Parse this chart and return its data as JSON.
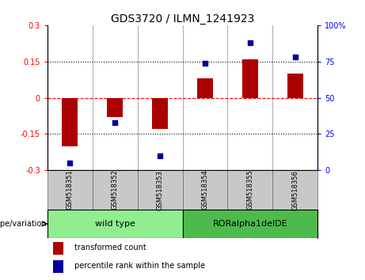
{
  "title": "GDS3720 / ILMN_1241923",
  "samples": [
    "GSM518351",
    "GSM518352",
    "GSM518353",
    "GSM518354",
    "GSM518355",
    "GSM518356"
  ],
  "red_values": [
    -0.2,
    -0.08,
    -0.13,
    0.08,
    0.16,
    0.1
  ],
  "blue_values": [
    5,
    33,
    10,
    74,
    88,
    78
  ],
  "ylim_left": [
    -0.3,
    0.3
  ],
  "ylim_right": [
    0,
    100
  ],
  "yticks_left": [
    -0.3,
    -0.15,
    0,
    0.15,
    0.3
  ],
  "ytick_labels_left": [
    "-0.3",
    "-0.15",
    "0",
    "0.15",
    "0.3"
  ],
  "yticks_right": [
    0,
    25,
    50,
    75,
    100
  ],
  "ytick_labels_right": [
    "0",
    "25",
    "50",
    "75",
    "100%"
  ],
  "hlines_dotted": [
    -0.15,
    0.15
  ],
  "hline_zero_color": "red",
  "groups": [
    {
      "label": "wild type",
      "indices": [
        0,
        1,
        2
      ],
      "color": "#90EE90"
    },
    {
      "label": "RORalpha1delDE",
      "indices": [
        3,
        4,
        5
      ],
      "color": "#4CBB4C"
    }
  ],
  "group_label": "genotype/variation",
  "legend_red_label": "transformed count",
  "legend_blue_label": "percentile rank within the sample",
  "bar_color": "#AA0000",
  "dot_color": "#000099",
  "bar_width": 0.35,
  "title_fontsize": 10,
  "tick_fontsize": 7,
  "sample_fontsize": 6,
  "group_fontsize": 8,
  "legend_fontsize": 7,
  "bg_sample_area": "#C8C8C8",
  "fig_bg": "#ffffff"
}
